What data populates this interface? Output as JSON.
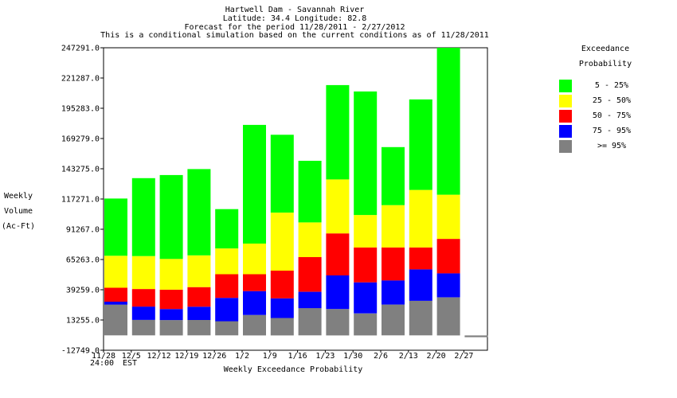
{
  "header": {
    "line1": "Hartwell Dam - Savannah River",
    "line2": "Latitude: 34.4    Longitude:  82.8",
    "line3": "Forecast for the period 11/28/2011 - 2/27/2012",
    "line4": "This is a conditional simulation based on the current conditions as of 11/28/2011"
  },
  "axis": {
    "ylabel_line1": "Weekly",
    "ylabel_line2": "Volume",
    "ylabel_line3": "(Ac-Ft)",
    "xlabel": "Weekly Exceedance Probability",
    "origin_line1": "24:00",
    "origin_line2": "EST"
  },
  "legend": {
    "title_line1": "Exceedance",
    "title_line2": "Probability",
    "items": [
      {
        "label": "5 - 25%",
        "color": "#00ff00"
      },
      {
        "label": "25 - 50%",
        "color": "#ffff00"
      },
      {
        "label": "50 - 75%",
        "color": "#ff0000"
      },
      {
        "label": "75 - 95%",
        "color": "#0000ff"
      },
      {
        "label": ">= 95%",
        "color": "#808080"
      }
    ]
  },
  "chart_data": {
    "type": "bar",
    "stacked": true,
    "title": "Hartwell Dam - Savannah River",
    "xlabel": "Weekly Exceedance Probability",
    "ylabel": "Weekly Volume (Ac-Ft)",
    "ylim": [
      -12749.0,
      247291.0
    ],
    "yticks": [
      "247291.0",
      "221287.0",
      "195283.0",
      "169279.0",
      "143275.0",
      "117271.0",
      "91267.0",
      "65263.0",
      "39259.0",
      "13255.0",
      "-12749.0"
    ],
    "ytick_values": [
      247291.0,
      221287.0,
      195283.0,
      169279.0,
      143275.0,
      117271.0,
      91267.0,
      65263.0,
      39259.0,
      13255.0,
      -12749.0
    ],
    "xticks": [
      "11/28",
      "12/5",
      "12/12",
      "12/19",
      "12/26",
      "1/2",
      "1/9",
      "1/16",
      "1/23",
      "1/30",
      "2/6",
      "2/13",
      "2/20",
      "2/27"
    ],
    "series_names": [
      ">= 95%",
      "75 - 95%",
      "50 - 75%",
      "25 - 50%",
      "5 - 25%"
    ],
    "series_colors": [
      "#808080",
      "#0000ff",
      "#ff0000",
      "#ffff00",
      "#00ff00"
    ],
    "bars": [
      {
        "bounds": [
          0,
          26500,
          29000,
          41000,
          68500,
          117700
        ]
      },
      {
        "bounds": [
          0,
          13300,
          24800,
          39900,
          68200,
          135200
        ]
      },
      {
        "bounds": [
          0,
          13200,
          22700,
          39300,
          65800,
          137900
        ]
      },
      {
        "bounds": [
          0,
          13300,
          24700,
          41500,
          68800,
          143000
        ]
      },
      {
        "bounds": [
          0,
          12200,
          32300,
          52600,
          74800,
          108600
        ]
      },
      {
        "bounds": [
          0,
          17600,
          38100,
          52600,
          79000,
          181000
        ]
      },
      {
        "bounds": [
          0,
          15000,
          31900,
          55700,
          105600,
          172500
        ]
      },
      {
        "bounds": [
          0,
          23500,
          37500,
          67300,
          97100,
          150100
        ]
      },
      {
        "bounds": [
          0,
          22700,
          51600,
          87700,
          134100,
          215200
        ]
      },
      {
        "bounds": [
          0,
          18900,
          45600,
          75600,
          103500,
          209700
        ]
      },
      {
        "bounds": [
          0,
          26500,
          47300,
          75600,
          112000,
          161900
        ]
      },
      {
        "bounds": [
          0,
          29800,
          56800,
          75600,
          125100,
          202900
        ]
      },
      {
        "bounds": [
          0,
          32700,
          53400,
          83000,
          121000,
          247291
        ]
      },
      {
        "bounds": [
          0,
          -1500
        ]
      }
    ]
  }
}
